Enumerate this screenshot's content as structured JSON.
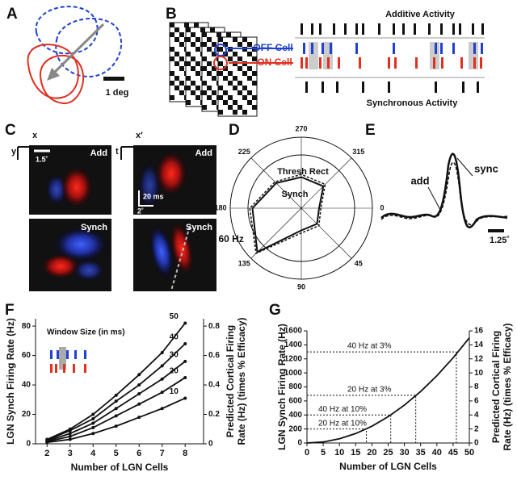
{
  "figure": {
    "panels": [
      "A",
      "B",
      "C",
      "D",
      "E",
      "F",
      "G"
    ],
    "a_scale": "1 deg",
    "b": {
      "top": "Additive Activity",
      "off": "OFF Cell",
      "on": "ON Cell",
      "bottom": "Synchronous Activity"
    },
    "c": {
      "x": "x",
      "y": "y",
      "scale": "1.5˚",
      "add": "Add",
      "synch": "Synch",
      "x2": "x′",
      "t": "t",
      "time_scale": "20 ms",
      "space_scale": "2˚",
      "add2": "Add",
      "synch2": "Synch"
    },
    "e": {
      "add": "add",
      "sync": "sync",
      "scale": "1.25˚"
    }
  },
  "chart_data": [
    {
      "type": "polar",
      "theta": [
        0,
        45,
        90,
        135,
        180,
        225,
        270,
        315
      ],
      "thetaticks": [
        0,
        45,
        90,
        135,
        180,
        225,
        270,
        315
      ],
      "rlim": [
        0,
        80
      ],
      "rticks": [
        {
          "value": 60,
          "label": "60 Hz"
        }
      ],
      "series": [
        {
          "name": "Thresh Rect",
          "color": "#111",
          "values": [
            22,
            28,
            28,
            72,
            58,
            42,
            38,
            38
          ]
        },
        {
          "name": "Synch",
          "color": "#111",
          "values": [
            20,
            25,
            25,
            70,
            55,
            40,
            35,
            35
          ]
        }
      ]
    },
    {
      "type": "line",
      "x_label": "Number of LGN Cells",
      "y_label": "LGN Synch Firing Rate (Hz)",
      "y2_label": [
        "Predicted Cortical Firing",
        "Rate (Hz) (times % Efficacy)"
      ],
      "annotation": "Window Size (in ms)",
      "x": [
        2,
        3,
        4,
        5,
        6,
        7,
        8
      ],
      "xlim": [
        1.5,
        8.8
      ],
      "xticks": [
        2,
        3,
        4,
        5,
        6,
        7,
        8
      ],
      "ylim": [
        0,
        85
      ],
      "yticks": [
        0,
        20,
        40,
        60,
        80
      ],
      "y2lim": [
        0,
        0.85
      ],
      "y2ticks": [
        0,
        0.2,
        0.4,
        0.6,
        0.8
      ],
      "series": [
        {
          "name": "10",
          "color": "#111",
          "values": [
            1,
            3,
            7,
            12,
            18,
            24,
            31
          ]
        },
        {
          "name": "20",
          "color": "#111",
          "values": [
            1.5,
            5,
            11,
            19,
            27,
            35,
            45
          ]
        },
        {
          "name": "30",
          "color": "#111",
          "values": [
            2,
            7,
            14,
            24,
            34,
            44,
            56
          ]
        },
        {
          "name": "40",
          "color": "#111",
          "values": [
            2.5,
            9,
            17,
            29,
            40,
            53,
            68
          ]
        },
        {
          "name": "50",
          "color": "#111",
          "values": [
            3,
            10,
            20,
            33,
            47,
            62,
            82
          ]
        }
      ]
    },
    {
      "type": "line",
      "x_label": "Number of LGN Cells",
      "y_label": "LGN Synch Firing Rate (Hz)",
      "y2_label": [
        "Predicted Cortical Firing",
        "Rate (Hz) (times % Efficacy)"
      ],
      "x": [
        0,
        5,
        10,
        15,
        20,
        25,
        30,
        35,
        40,
        45,
        50
      ],
      "xlim": [
        0,
        50
      ],
      "xticks": [
        0,
        5,
        10,
        15,
        20,
        25,
        30,
        35,
        40,
        45,
        50
      ],
      "ylim": [
        0,
        1600
      ],
      "yticks": [
        0,
        200,
        400,
        600,
        800,
        1000,
        1200,
        1400,
        1600
      ],
      "y2lim": [
        0,
        16
      ],
      "y2ticks": [
        0,
        2,
        4,
        6,
        8,
        10,
        12,
        14,
        16
      ],
      "series": [
        {
          "color": "#111",
          "values": [
            0,
            15,
            60,
            135,
            240,
            375,
            540,
            735,
            960,
            1215,
            1500
          ]
        }
      ],
      "annotations": [
        {
          "text": "40 Hz at 3%",
          "x": 46,
          "y": 1300
        },
        {
          "text": "20 Hz at 3%",
          "x": 33.5,
          "y": 680
        },
        {
          "text": "40 Hz at 10%",
          "x": 25.8,
          "y": 400
        },
        {
          "text": "20 Hz at 10%",
          "x": 18.3,
          "y": 200
        }
      ]
    }
  ]
}
